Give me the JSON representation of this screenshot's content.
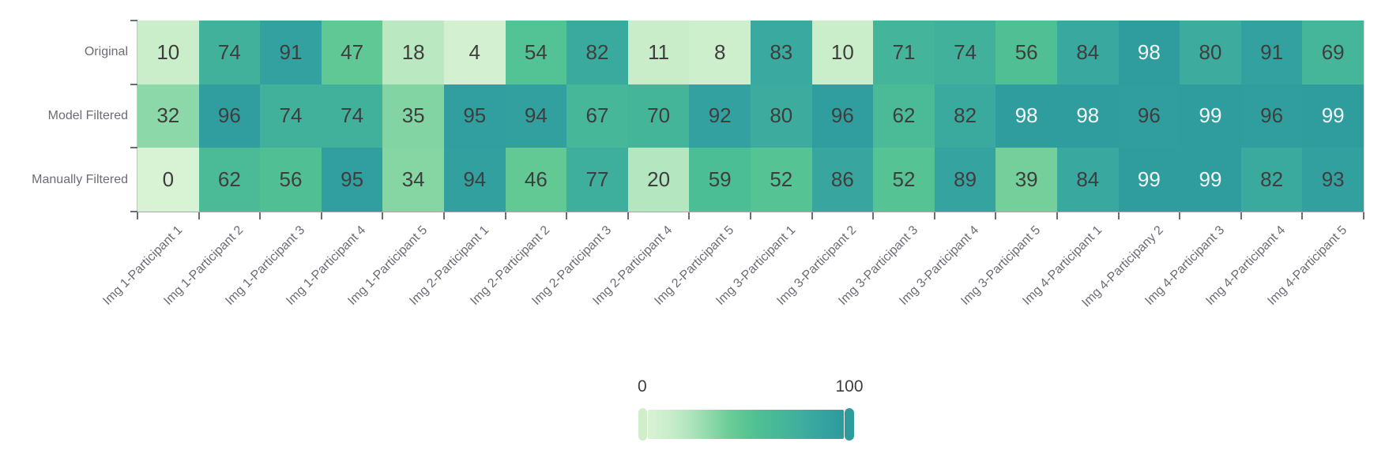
{
  "chart_data": {
    "type": "heatmap",
    "title": "",
    "rows": [
      "Original",
      "Model Filtered",
      "Manually Filtered"
    ],
    "columns": [
      "Img 1-Participant 1",
      "Img 1-Participant 2",
      "Img 1-Participant 3",
      "Img 1-Participant 4",
      "Img 1-Participant 5",
      "Img 2-Participant 1",
      "Img 2-Participant 2",
      "Img 2-Participant 3",
      "Img 2-Participant 4",
      "Img 2-Participant 5",
      "Img 3-Participant 1",
      "Img 3-Participant 2",
      "Img 3-Participant 3",
      "Img 3-Participant 4",
      "Img 3-Participant 5",
      "Img 4-Participant 1",
      "Img 4-Participany 2",
      "Img 4-Participant 3",
      "Img 4-Participant 4",
      "Img 4-Participant 5"
    ],
    "values": [
      [
        10,
        74,
        91,
        47,
        18,
        4,
        54,
        82,
        11,
        8,
        83,
        10,
        71,
        74,
        56,
        84,
        98,
        80,
        91,
        69
      ],
      [
        32,
        96,
        74,
        74,
        35,
        95,
        94,
        67,
        70,
        92,
        80,
        96,
        62,
        82,
        98,
        98,
        96,
        99,
        96,
        99
      ],
      [
        0,
        62,
        56,
        95,
        34,
        94,
        46,
        77,
        20,
        59,
        52,
        86,
        52,
        89,
        39,
        84,
        99,
        99,
        82,
        93
      ]
    ],
    "value_range": [
      0,
      100
    ],
    "colorscale": [
      {
        "pos": 0,
        "color": [
          216,
          242,
          212
        ]
      },
      {
        "pos": 10,
        "color": [
          203,
          238,
          202
        ]
      },
      {
        "pos": 20,
        "color": [
          180,
          230,
          191
        ]
      },
      {
        "pos": 30,
        "color": [
          148,
          219,
          172
        ]
      },
      {
        "pos": 40,
        "color": [
          112,
          206,
          153
        ]
      },
      {
        "pos": 50,
        "color": [
          88,
          197,
          147
        ]
      },
      {
        "pos": 60,
        "color": [
          75,
          189,
          149
        ]
      },
      {
        "pos": 70,
        "color": [
          69,
          181,
          154
        ]
      },
      {
        "pos": 80,
        "color": [
          61,
          172,
          158
        ]
      },
      {
        "pos": 90,
        "color": [
          52,
          162,
          160
        ]
      },
      {
        "pos": 100,
        "color": [
          46,
          156,
          157
        ]
      }
    ],
    "white_text_threshold": 97,
    "text_color_dark": "#3e3e3e",
    "text_color_light": "#f5f6f7",
    "legend": {
      "min_label": "0",
      "max_label": "100",
      "min_cap_color": "#cfeec9",
      "max_cap_color": "#2e9c9c"
    },
    "gridlines": false,
    "legend_position": "bottom-center"
  }
}
